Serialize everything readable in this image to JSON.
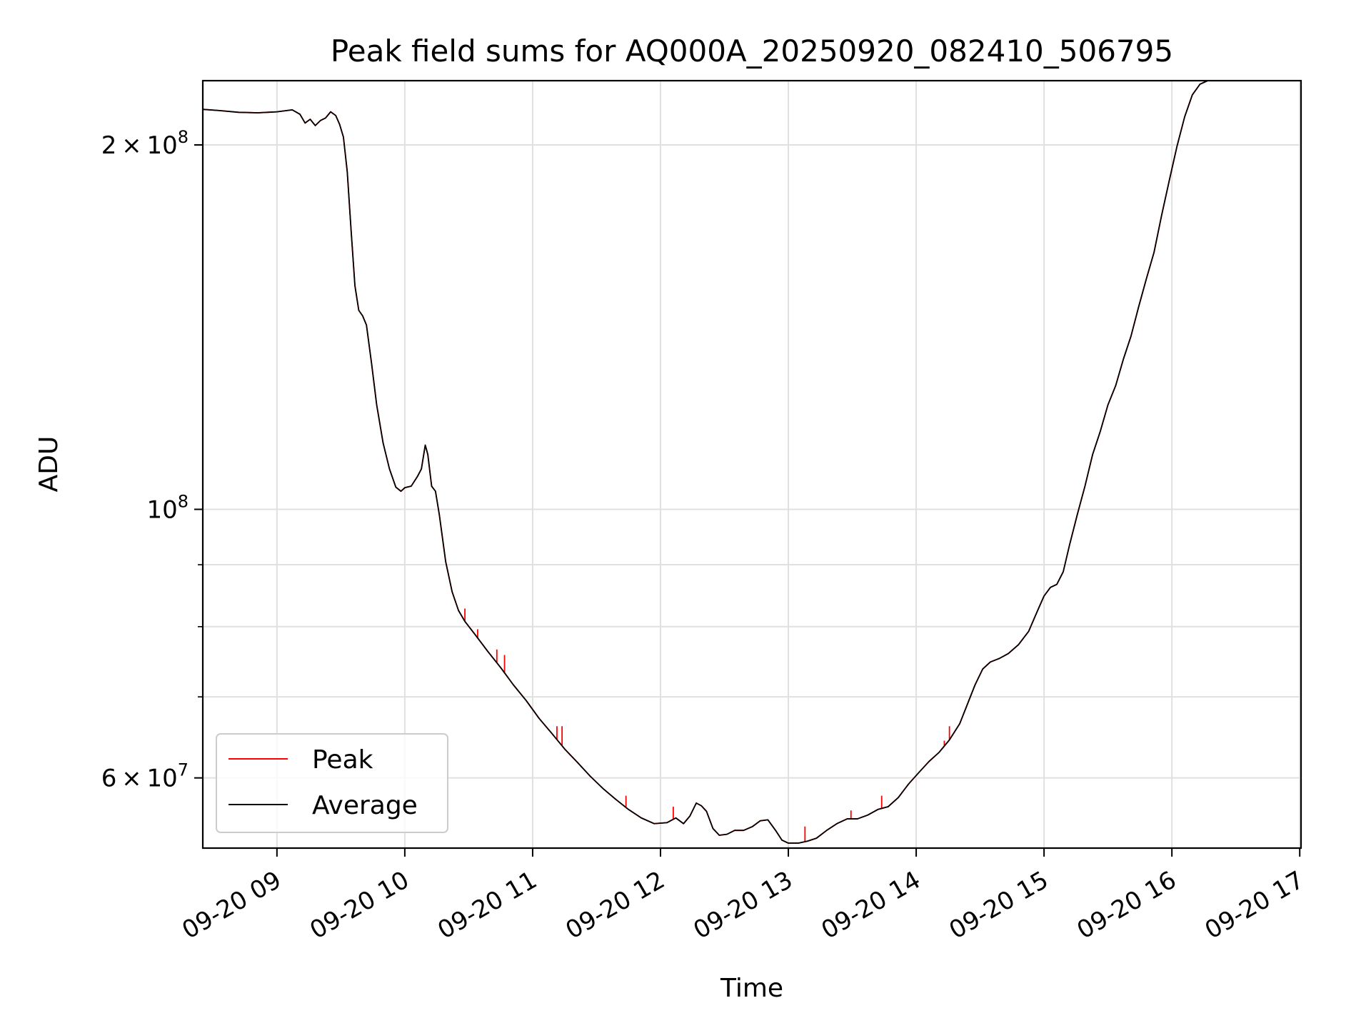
{
  "chart_data": {
    "type": "line",
    "title": "Peak field sums for AQ000A_20250920_082410_506795",
    "xlabel": "Time",
    "ylabel": "ADU",
    "y_scale": "log",
    "xlim": [
      8.42,
      17.01
    ],
    "ylim": [
      52500000,
      226000000
    ],
    "grid": true,
    "legend_position": "lower-left",
    "x_ticks": [
      {
        "value": 9,
        "label": "09-20 09"
      },
      {
        "value": 10,
        "label": "09-20 10"
      },
      {
        "value": 11,
        "label": "09-20 11"
      },
      {
        "value": 12,
        "label": "09-20 12"
      },
      {
        "value": 13,
        "label": "09-20 13"
      },
      {
        "value": 14,
        "label": "09-20 14"
      },
      {
        "value": 15,
        "label": "09-20 15"
      },
      {
        "value": 16,
        "label": "09-20 16"
      },
      {
        "value": 17,
        "label": "09-20 17"
      }
    ],
    "y_major_ticks": [
      {
        "value": 200000000,
        "mantissa": "2",
        "exponent": "8"
      },
      {
        "value": 100000000,
        "mantissa": "",
        "exponent": "8"
      },
      {
        "value": 60000000,
        "mantissa": "6",
        "exponent": "7"
      }
    ],
    "y_minor_ticks": [
      70000000,
      80000000,
      90000000
    ],
    "times_symbol": "×",
    "base_label": "10",
    "series": [
      {
        "name": "Peak",
        "color": "#ff0000",
        "points": [
          [
            8.42,
            214000000
          ],
          [
            8.55,
            213500000
          ],
          [
            8.7,
            212800000
          ],
          [
            8.85,
            212600000
          ],
          [
            9.0,
            213000000
          ],
          [
            9.12,
            213800000
          ],
          [
            9.18,
            212000000
          ],
          [
            9.22,
            208500000
          ],
          [
            9.26,
            210000000
          ],
          [
            9.3,
            207500000
          ],
          [
            9.34,
            209500000
          ],
          [
            9.38,
            210500000
          ],
          [
            9.42,
            213000000
          ],
          [
            9.46,
            211500000
          ],
          [
            9.49,
            208000000
          ],
          [
            9.52,
            203000000
          ],
          [
            9.55,
            190000000
          ],
          [
            9.58,
            170000000
          ],
          [
            9.61,
            153000000
          ],
          [
            9.64,
            146000000
          ],
          [
            9.67,
            144500000
          ],
          [
            9.7,
            142000000
          ],
          [
            9.74,
            132000000
          ],
          [
            9.78,
            122000000
          ],
          [
            9.83,
            113500000
          ],
          [
            9.88,
            108000000
          ],
          [
            9.93,
            104300000
          ],
          [
            9.97,
            103500000
          ],
          [
            10.0,
            104200000
          ],
          [
            10.05,
            104500000
          ],
          [
            10.1,
            106500000
          ],
          [
            10.13,
            108000000
          ],
          [
            10.16,
            113000000
          ],
          [
            10.18,
            111000000
          ],
          [
            10.21,
            104500000
          ],
          [
            10.24,
            103500000
          ],
          [
            10.27,
            99000000
          ],
          [
            10.32,
            90500000
          ],
          [
            10.37,
            85500000
          ],
          [
            10.42,
            82500000
          ],
          [
            10.47,
            80800000
          ],
          [
            10.55,
            78800000
          ],
          [
            10.65,
            76300000
          ],
          [
            10.75,
            74000000
          ],
          [
            10.85,
            71600000
          ],
          [
            10.95,
            69500000
          ],
          [
            11.05,
            67200000
          ],
          [
            11.15,
            65300000
          ],
          [
            11.25,
            63400000
          ],
          [
            11.35,
            61800000
          ],
          [
            11.45,
            60200000
          ],
          [
            11.55,
            58800000
          ],
          [
            11.65,
            57600000
          ],
          [
            11.75,
            56500000
          ],
          [
            11.85,
            55600000
          ],
          [
            11.95,
            55000000
          ],
          [
            12.05,
            55100000
          ],
          [
            12.12,
            55600000
          ],
          [
            12.18,
            55000000
          ],
          [
            12.23,
            55800000
          ],
          [
            12.28,
            57200000
          ],
          [
            12.32,
            56900000
          ],
          [
            12.36,
            56300000
          ],
          [
            12.41,
            54500000
          ],
          [
            12.46,
            53800000
          ],
          [
            12.52,
            53900000
          ],
          [
            12.58,
            54300000
          ],
          [
            12.65,
            54300000
          ],
          [
            12.72,
            54700000
          ],
          [
            12.78,
            55300000
          ],
          [
            12.84,
            55400000
          ],
          [
            12.9,
            54300000
          ],
          [
            12.95,
            53300000
          ],
          [
            13.0,
            53000000
          ],
          [
            13.08,
            53000000
          ],
          [
            13.15,
            53200000
          ],
          [
            13.22,
            53500000
          ],
          [
            13.3,
            54300000
          ],
          [
            13.38,
            55000000
          ],
          [
            13.46,
            55500000
          ],
          [
            13.54,
            55500000
          ],
          [
            13.62,
            55900000
          ],
          [
            13.7,
            56500000
          ],
          [
            13.78,
            56800000
          ],
          [
            13.86,
            57800000
          ],
          [
            13.94,
            59300000
          ],
          [
            14.02,
            60600000
          ],
          [
            14.1,
            61900000
          ],
          [
            14.18,
            63000000
          ],
          [
            14.26,
            64500000
          ],
          [
            14.34,
            66500000
          ],
          [
            14.4,
            69000000
          ],
          [
            14.46,
            71600000
          ],
          [
            14.52,
            73800000
          ],
          [
            14.58,
            74800000
          ],
          [
            14.65,
            75300000
          ],
          [
            14.72,
            76000000
          ],
          [
            14.8,
            77300000
          ],
          [
            14.88,
            79300000
          ],
          [
            14.95,
            82500000
          ],
          [
            15.0,
            84800000
          ],
          [
            15.05,
            86200000
          ],
          [
            15.1,
            86700000
          ],
          [
            15.15,
            88800000
          ],
          [
            15.2,
            93500000
          ],
          [
            15.26,
            99000000
          ],
          [
            15.32,
            104500000
          ],
          [
            15.38,
            111000000
          ],
          [
            15.44,
            116000000
          ],
          [
            15.5,
            122000000
          ],
          [
            15.56,
            126500000
          ],
          [
            15.62,
            133000000
          ],
          [
            15.68,
            139000000
          ],
          [
            15.74,
            147000000
          ],
          [
            15.8,
            155000000
          ],
          [
            15.86,
            163000000
          ],
          [
            15.92,
            175000000
          ],
          [
            15.98,
            187000000
          ],
          [
            16.04,
            199500000
          ],
          [
            16.1,
            211000000
          ],
          [
            16.16,
            220000000
          ],
          [
            16.22,
            224500000
          ],
          [
            16.28,
            226000000
          ]
        ],
        "spikes": [
          [
            10.47,
            82800000
          ],
          [
            10.57,
            79600000
          ],
          [
            10.72,
            76600000
          ],
          [
            10.78,
            75800000
          ],
          [
            11.19,
            66200000
          ],
          [
            11.23,
            66200000
          ],
          [
            11.73,
            58000000
          ],
          [
            12.1,
            56800000
          ],
          [
            13.13,
            54700000
          ],
          [
            13.49,
            56400000
          ],
          [
            13.73,
            58000000
          ],
          [
            14.22,
            64400000
          ],
          [
            14.26,
            66200000
          ]
        ]
      },
      {
        "name": "Average",
        "color": "#000000",
        "points": [
          [
            8.42,
            214000000
          ],
          [
            8.55,
            213500000
          ],
          [
            8.7,
            212800000
          ],
          [
            8.85,
            212600000
          ],
          [
            9.0,
            213000000
          ],
          [
            9.12,
            213800000
          ],
          [
            9.18,
            212000000
          ],
          [
            9.22,
            208500000
          ],
          [
            9.26,
            210000000
          ],
          [
            9.3,
            207500000
          ],
          [
            9.34,
            209500000
          ],
          [
            9.38,
            210500000
          ],
          [
            9.42,
            213000000
          ],
          [
            9.46,
            211500000
          ],
          [
            9.49,
            208000000
          ],
          [
            9.52,
            203000000
          ],
          [
            9.55,
            190000000
          ],
          [
            9.58,
            170000000
          ],
          [
            9.61,
            153000000
          ],
          [
            9.64,
            146000000
          ],
          [
            9.67,
            144500000
          ],
          [
            9.7,
            142000000
          ],
          [
            9.74,
            132000000
          ],
          [
            9.78,
            122000000
          ],
          [
            9.83,
            113500000
          ],
          [
            9.88,
            108000000
          ],
          [
            9.93,
            104300000
          ],
          [
            9.97,
            103500000
          ],
          [
            10.0,
            104200000
          ],
          [
            10.05,
            104500000
          ],
          [
            10.1,
            106500000
          ],
          [
            10.13,
            108000000
          ],
          [
            10.16,
            113000000
          ],
          [
            10.18,
            111000000
          ],
          [
            10.21,
            104500000
          ],
          [
            10.24,
            103500000
          ],
          [
            10.27,
            99000000
          ],
          [
            10.32,
            90500000
          ],
          [
            10.37,
            85500000
          ],
          [
            10.42,
            82500000
          ],
          [
            10.47,
            80800000
          ],
          [
            10.55,
            78800000
          ],
          [
            10.65,
            76300000
          ],
          [
            10.75,
            74000000
          ],
          [
            10.85,
            71600000
          ],
          [
            10.95,
            69500000
          ],
          [
            11.05,
            67200000
          ],
          [
            11.15,
            65300000
          ],
          [
            11.25,
            63400000
          ],
          [
            11.35,
            61800000
          ],
          [
            11.45,
            60200000
          ],
          [
            11.55,
            58800000
          ],
          [
            11.65,
            57600000
          ],
          [
            11.75,
            56500000
          ],
          [
            11.85,
            55600000
          ],
          [
            11.95,
            55000000
          ],
          [
            12.05,
            55100000
          ],
          [
            12.12,
            55600000
          ],
          [
            12.18,
            55000000
          ],
          [
            12.23,
            55800000
          ],
          [
            12.28,
            57200000
          ],
          [
            12.32,
            56900000
          ],
          [
            12.36,
            56300000
          ],
          [
            12.41,
            54500000
          ],
          [
            12.46,
            53800000
          ],
          [
            12.52,
            53900000
          ],
          [
            12.58,
            54300000
          ],
          [
            12.65,
            54300000
          ],
          [
            12.72,
            54700000
          ],
          [
            12.78,
            55300000
          ],
          [
            12.84,
            55400000
          ],
          [
            12.9,
            54300000
          ],
          [
            12.95,
            53300000
          ],
          [
            13.0,
            53000000
          ],
          [
            13.08,
            53000000
          ],
          [
            13.15,
            53200000
          ],
          [
            13.22,
            53500000
          ],
          [
            13.3,
            54300000
          ],
          [
            13.38,
            55000000
          ],
          [
            13.46,
            55500000
          ],
          [
            13.54,
            55500000
          ],
          [
            13.62,
            55900000
          ],
          [
            13.7,
            56500000
          ],
          [
            13.78,
            56800000
          ],
          [
            13.86,
            57800000
          ],
          [
            13.94,
            59300000
          ],
          [
            14.02,
            60600000
          ],
          [
            14.1,
            61900000
          ],
          [
            14.18,
            63000000
          ],
          [
            14.26,
            64500000
          ],
          [
            14.34,
            66500000
          ],
          [
            14.4,
            69000000
          ],
          [
            14.46,
            71600000
          ],
          [
            14.52,
            73800000
          ],
          [
            14.58,
            74800000
          ],
          [
            14.65,
            75300000
          ],
          [
            14.72,
            76000000
          ],
          [
            14.8,
            77300000
          ],
          [
            14.88,
            79300000
          ],
          [
            14.95,
            82500000
          ],
          [
            15.0,
            84800000
          ],
          [
            15.05,
            86200000
          ],
          [
            15.1,
            86700000
          ],
          [
            15.15,
            88800000
          ],
          [
            15.2,
            93500000
          ],
          [
            15.26,
            99000000
          ],
          [
            15.32,
            104500000
          ],
          [
            15.38,
            111000000
          ],
          [
            15.44,
            116000000
          ],
          [
            15.5,
            122000000
          ],
          [
            15.56,
            126500000
          ],
          [
            15.62,
            133000000
          ],
          [
            15.68,
            139000000
          ],
          [
            15.74,
            147000000
          ],
          [
            15.8,
            155000000
          ],
          [
            15.86,
            163000000
          ],
          [
            15.92,
            175000000
          ],
          [
            15.98,
            187000000
          ],
          [
            16.04,
            199500000
          ],
          [
            16.1,
            211000000
          ],
          [
            16.16,
            220000000
          ],
          [
            16.22,
            224500000
          ],
          [
            16.28,
            226000000
          ]
        ]
      }
    ]
  }
}
